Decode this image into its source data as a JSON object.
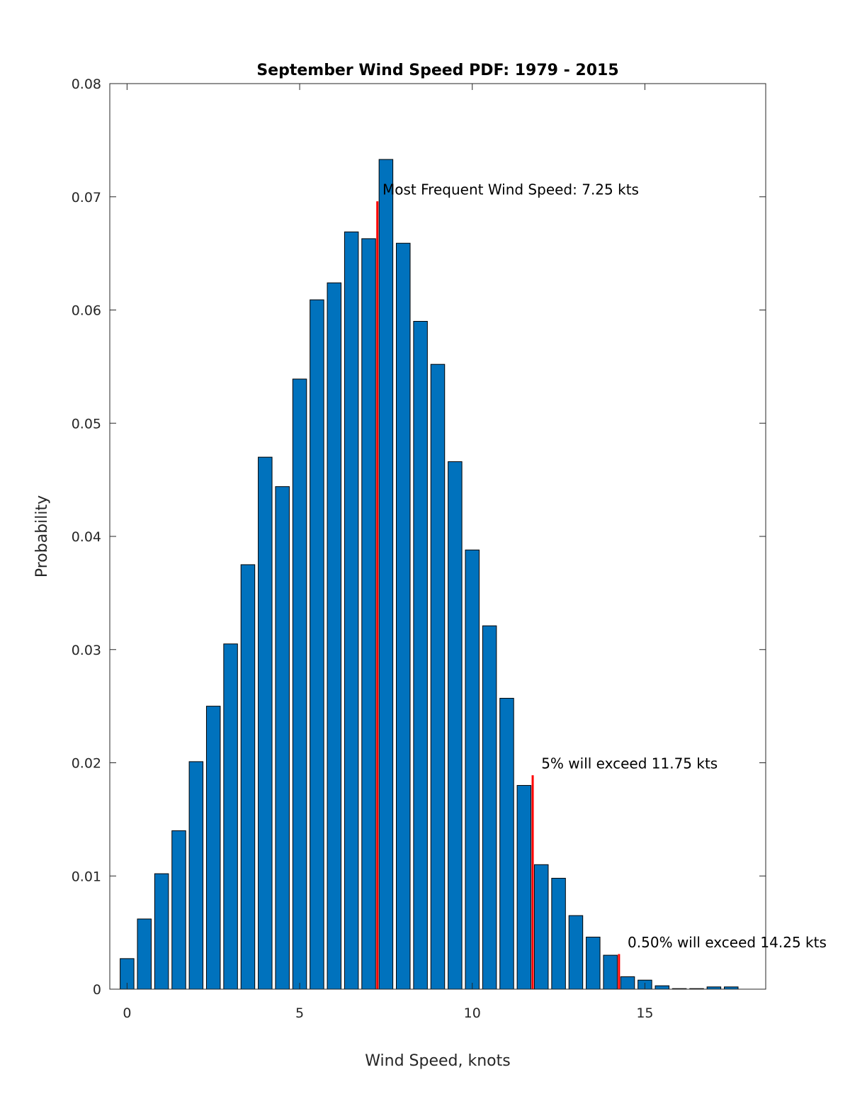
{
  "chart_data": {
    "type": "bar",
    "title": "September Wind Speed PDF: 1979 - 2015",
    "xlabel": "Wind Speed, knots",
    "ylabel": "Probability",
    "xlim": [
      -0.5,
      18.5
    ],
    "ylim": [
      0,
      0.08
    ],
    "xticks": [
      0,
      5,
      10,
      15
    ],
    "xtick_labels": [
      "0",
      "5",
      "10",
      "15"
    ],
    "yticks": [
      0,
      0.01,
      0.02,
      0.03,
      0.04,
      0.05,
      0.06,
      0.07,
      0.08
    ],
    "ytick_labels": [
      "0",
      "0.01",
      "0.02",
      "0.03",
      "0.04",
      "0.05",
      "0.06",
      "0.07",
      "0.08"
    ],
    "bar_color": "#0072BD",
    "marker_color": "#FF0000",
    "bar_width": 0.4,
    "x": [
      0,
      0.5,
      1,
      1.5,
      2,
      2.5,
      3,
      3.5,
      4,
      4.5,
      5,
      5.5,
      6,
      6.5,
      7,
      7.5,
      8,
      8.5,
      9,
      9.5,
      10,
      10.5,
      11,
      11.5,
      12,
      12.5,
      13,
      13.5,
      14,
      14.5,
      15,
      15.5,
      16,
      16.5,
      17,
      17.5
    ],
    "values": [
      0.0027,
      0.0062,
      0.0102,
      0.014,
      0.0201,
      0.025,
      0.0305,
      0.0375,
      0.047,
      0.0444,
      0.0539,
      0.0609,
      0.0624,
      0.0669,
      0.0663,
      0.0733,
      0.0659,
      0.059,
      0.0552,
      0.0466,
      0.0388,
      0.0321,
      0.0257,
      0.018,
      0.011,
      0.0098,
      0.0065,
      0.0046,
      0.003,
      0.0011,
      0.0008,
      0.0003,
      5e-05,
      5e-05,
      0.0002,
      0.0002
    ],
    "annotations": [
      {
        "x": 7.25,
        "line_height": 0.0696,
        "text": "Most Frequent Wind Speed: 7.25 kts",
        "text_x": 7.4,
        "text_y": 0.0702
      },
      {
        "x": 11.75,
        "line_height": 0.0189,
        "text": "5% will exceed 11.75 kts",
        "text_x": 12.0,
        "text_y": 0.0195
      },
      {
        "x": 14.25,
        "line_height": 0.0031,
        "text": "0.50% will exceed 14.25 kts",
        "text_x": 14.5,
        "text_y": 0.0037
      }
    ]
  }
}
